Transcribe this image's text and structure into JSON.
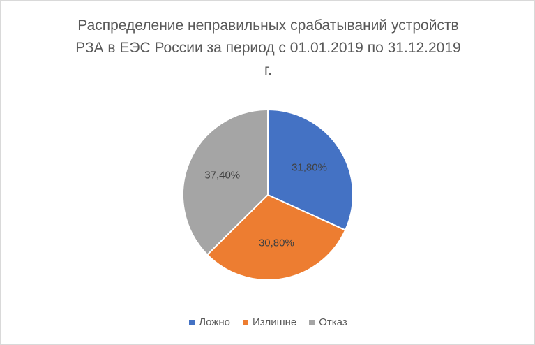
{
  "chart_data": {
    "type": "pie",
    "title_lines": [
      "Распределение неправильных срабатываний устройств",
      "РЗА в ЕЭС России за период с 01.01.2019 по 31.12.2019",
      "г."
    ],
    "categories": [
      "Ложно",
      "Излишне",
      "Отказ"
    ],
    "values": [
      31.8,
      30.8,
      37.4
    ],
    "data_labels": [
      "31,80%",
      "30,80%",
      "37,40%"
    ],
    "colors": [
      "#4472C4",
      "#ED7D31",
      "#A5A5A5"
    ],
    "legend_position": "bottom",
    "start_angle": "12 o'clock, clockwise"
  }
}
